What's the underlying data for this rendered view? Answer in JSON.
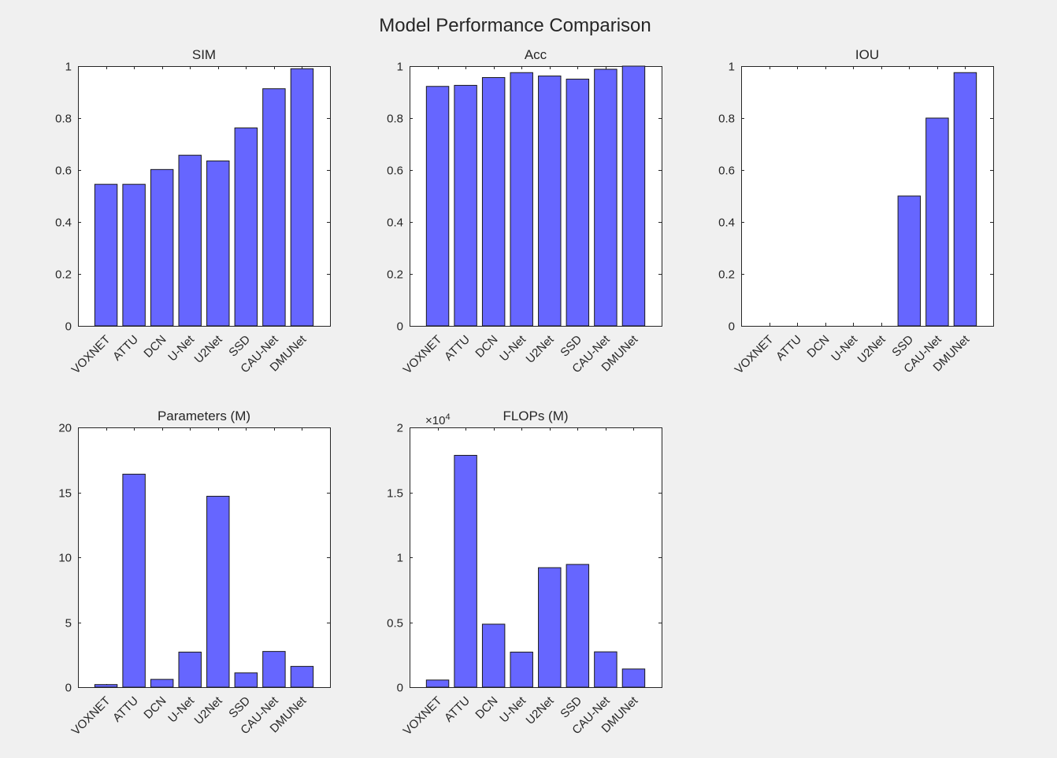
{
  "figure": {
    "title": "Model Performance Comparison",
    "background": "#f0f0f0"
  },
  "chart_data": [
    {
      "type": "bar",
      "title": "SIM",
      "categories": [
        "VOXNET",
        "ATTU",
        "DCN",
        "U-Net",
        "U2Net",
        "SSD",
        "CAU-Net",
        "DMUNet"
      ],
      "values": [
        0.545,
        0.545,
        0.602,
        0.657,
        0.635,
        0.762,
        0.913,
        0.99
      ],
      "ylim": [
        0,
        1
      ],
      "yticks": [
        "0",
        "0.2",
        "0.4",
        "0.6",
        "0.8",
        "1"
      ],
      "color": "#6666ff",
      "grid": false
    },
    {
      "type": "bar",
      "title": "Acc",
      "categories": [
        "VOXNET",
        "ATTU",
        "DCN",
        "U-Net",
        "U2Net",
        "SSD",
        "CAU-Net",
        "DMUNet"
      ],
      "values": [
        0.922,
        0.926,
        0.956,
        0.975,
        0.962,
        0.95,
        0.988,
        1.0
      ],
      "ylim": [
        0,
        1
      ],
      "yticks": [
        "0",
        "0.2",
        "0.4",
        "0.6",
        "0.8",
        "1"
      ],
      "color": "#6666ff",
      "grid": false
    },
    {
      "type": "bar",
      "title": "IOU",
      "categories": [
        "VOXNET",
        "ATTU",
        "DCN",
        "U-Net",
        "U2Net",
        "SSD",
        "CAU-Net",
        "DMUNet"
      ],
      "values": [
        0,
        0,
        0,
        0,
        0,
        0.5,
        0.8,
        0.975
      ],
      "ylim": [
        0,
        1
      ],
      "yticks": [
        "0",
        "0.2",
        "0.4",
        "0.6",
        "0.8",
        "1"
      ],
      "color": "#6666ff",
      "grid": false
    },
    {
      "type": "bar",
      "title": "Parameters (M)",
      "categories": [
        "VOXNET",
        "ATTU",
        "DCN",
        "U-Net",
        "U2Net",
        "SSD",
        "CAU-Net",
        "DMUNet"
      ],
      "values": [
        0.2,
        16.4,
        0.6,
        2.7,
        14.7,
        1.1,
        2.75,
        1.6
      ],
      "ylim": [
        0,
        20
      ],
      "yticks": [
        "0",
        "5",
        "10",
        "15",
        "20"
      ],
      "color": "#6666ff",
      "grid": false
    },
    {
      "type": "bar",
      "title": "FLOPs (M)",
      "categories": [
        "VOXNET",
        "ATTU",
        "DCN",
        "U-Net",
        "U2Net",
        "SSD",
        "CAU-Net",
        "DMUNet"
      ],
      "values": [
        550,
        17850,
        4850,
        2700,
        9200,
        9450,
        2720,
        1400
      ],
      "ylim": [
        0,
        20000
      ],
      "yticks": [
        "0",
        "0.5",
        "1",
        "1.5",
        "2"
      ],
      "exponent_base": "×10",
      "exponent": "4",
      "color": "#6666ff",
      "grid": false
    }
  ]
}
